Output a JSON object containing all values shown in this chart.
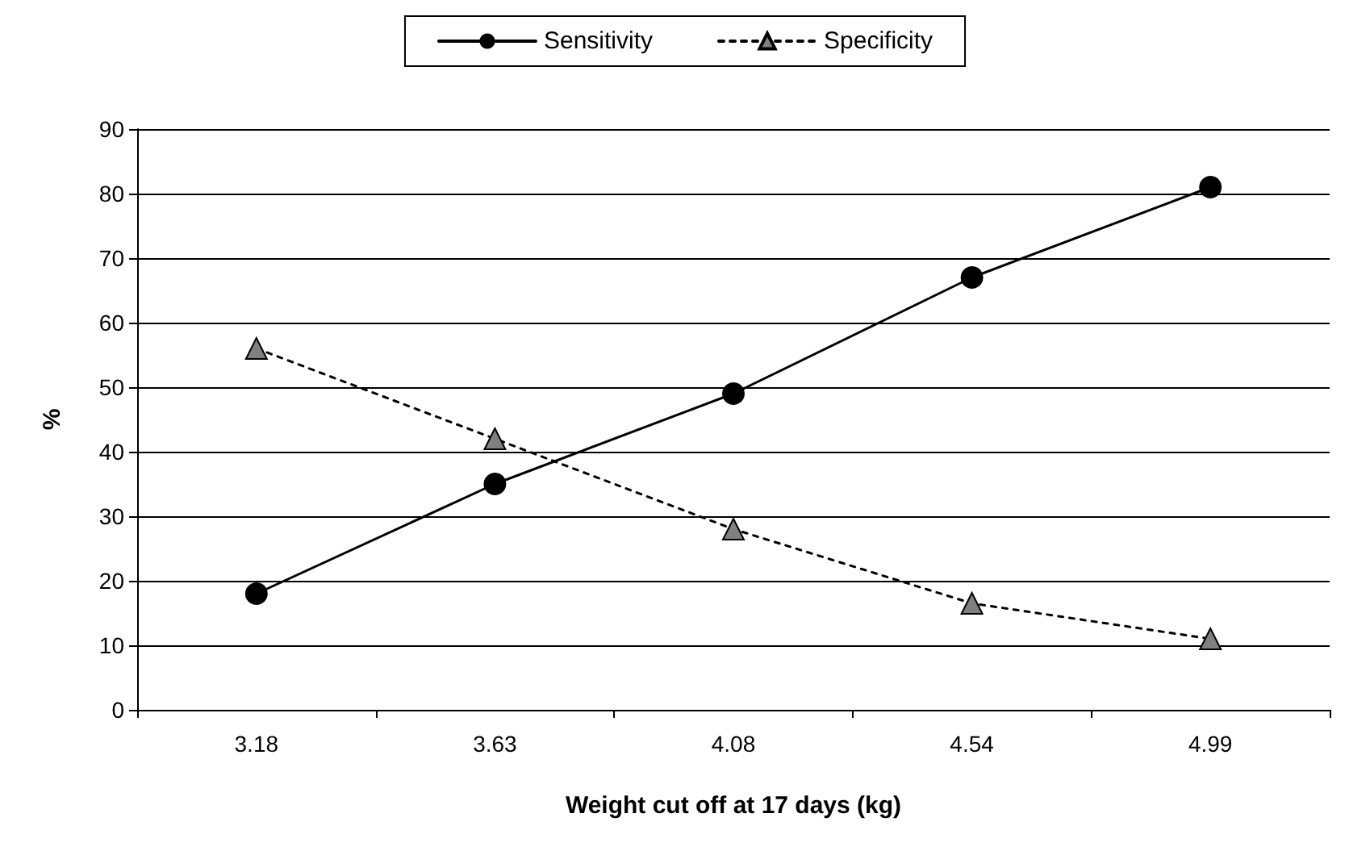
{
  "chart_data": {
    "type": "line",
    "xlabel": "Weight cut off at 17 days (kg)",
    "ylabel": "%",
    "categories": [
      "3.18",
      "3.63",
      "4.08",
      "4.54",
      "4.99"
    ],
    "series": [
      {
        "name": "Sensitivity",
        "color": "#000000",
        "marker": "circle",
        "line_style": "solid",
        "values": [
          18,
          35,
          49,
          67,
          81
        ]
      },
      {
        "name": "Specificity",
        "color": "#808080",
        "marker": "triangle",
        "line_style": "dotted",
        "values": [
          56,
          42,
          28,
          16.5,
          11
        ]
      }
    ],
    "ylim": [
      0,
      90
    ],
    "yticks": [
      0,
      10,
      20,
      30,
      40,
      50,
      60,
      70,
      80,
      90
    ],
    "grid": "y",
    "legend": "top"
  }
}
